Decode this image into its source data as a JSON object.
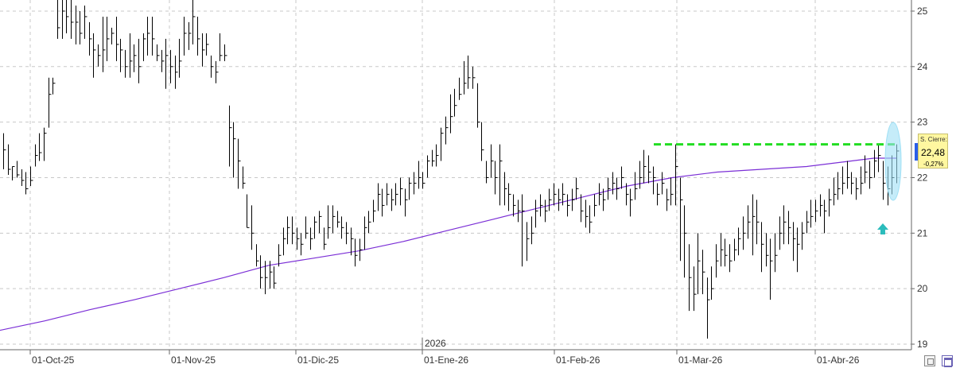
{
  "chart_data": {
    "type": "ohlc_bar",
    "x_tick_labels": [
      "01-Oct-25",
      "01-Nov-25",
      "01-Dic-25",
      "01-Ene-26",
      "01-Feb-26",
      "01-Mar-26",
      "01-Abr-26"
    ],
    "year_label": "2026",
    "y_tick_labels": [
      "19",
      "20",
      "21",
      "22",
      "23",
      "24",
      "25"
    ],
    "y_ticks": [
      19,
      20,
      21,
      22,
      23,
      24,
      25
    ],
    "ylim": [
      18.9,
      25.2
    ],
    "grid": true,
    "series": [
      {
        "kind": "ohlc",
        "color": "#000000",
        "values": [
          [
            22.8,
            22.5,
            22.15
          ],
          [
            22.6,
            22.15,
            22.05
          ],
          [
            22.2,
            22.2,
            21.95
          ],
          [
            22.3,
            22.05,
            22.0
          ],
          [
            22.15,
            21.95,
            21.85
          ],
          [
            22.1,
            21.8,
            21.7
          ],
          [
            22.2,
            21.95,
            21.85
          ],
          [
            22.6,
            22.4,
            22.2
          ],
          [
            22.8,
            22.45,
            22.3
          ],
          [
            22.9,
            22.8,
            22.3
          ],
          [
            23.8,
            23.5,
            22.9
          ],
          [
            23.8,
            23.7,
            23.5
          ],
          [
            25.3,
            24.7,
            24.5
          ],
          [
            25.2,
            25.0,
            24.5
          ],
          [
            25.2,
            24.9,
            24.6
          ],
          [
            25.2,
            24.8,
            24.5
          ],
          [
            25.1,
            24.8,
            24.4
          ],
          [
            25.0,
            24.6,
            24.4
          ],
          [
            25.1,
            24.9,
            24.5
          ],
          [
            24.8,
            24.5,
            24.2
          ],
          [
            24.6,
            24.3,
            23.8
          ],
          [
            24.4,
            24.2,
            24.0
          ],
          [
            24.9,
            24.3,
            23.9
          ],
          [
            24.9,
            24.5,
            24.1
          ],
          [
            24.7,
            24.6,
            24.4
          ],
          [
            24.9,
            24.4,
            24.1
          ],
          [
            24.5,
            24.3,
            23.9
          ],
          [
            24.3,
            24.0,
            23.8
          ],
          [
            24.6,
            24.1,
            23.8
          ],
          [
            24.4,
            24.2,
            23.9
          ],
          [
            24.5,
            24.0,
            23.7
          ],
          [
            24.6,
            24.5,
            24.1
          ],
          [
            24.9,
            24.6,
            24.2
          ],
          [
            24.9,
            24.5,
            24.2
          ],
          [
            24.4,
            24.2,
            24.1
          ],
          [
            24.3,
            24.1,
            23.9
          ],
          [
            24.5,
            24.2,
            23.6
          ],
          [
            24.3,
            24.0,
            23.7
          ],
          [
            24.2,
            23.9,
            23.6
          ],
          [
            24.5,
            24.1,
            23.8
          ],
          [
            24.9,
            24.6,
            24.2
          ],
          [
            24.8,
            24.6,
            24.3
          ],
          [
            25.2,
            24.9,
            24.4
          ],
          [
            24.9,
            24.5,
            24.2
          ],
          [
            24.6,
            24.3,
            24.0
          ],
          [
            24.6,
            24.4,
            24.2
          ],
          [
            24.2,
            24.0,
            23.8
          ],
          [
            24.1,
            23.9,
            23.7
          ],
          [
            24.6,
            24.2,
            24.1
          ],
          [
            24.4,
            24.2,
            24.1
          ],
          [
            23.3,
            22.9,
            22.2
          ],
          [
            23.0,
            22.7,
            22.0
          ],
          [
            22.7,
            22.3,
            21.8
          ],
          [
            22.2,
            21.9,
            21.8
          ],
          [
            21.7,
            21.1,
            21.1
          ],
          [
            21.5,
            21.0,
            20.7
          ],
          [
            20.8,
            20.5,
            20.4
          ],
          [
            20.6,
            20.2,
            20.0
          ],
          [
            20.5,
            20.2,
            19.9
          ],
          [
            20.5,
            20.3,
            20.0
          ],
          [
            20.4,
            20.1,
            20.0
          ],
          [
            20.8,
            20.6,
            20.4
          ],
          [
            21.1,
            20.9,
            20.6
          ],
          [
            21.3,
            21.1,
            20.8
          ],
          [
            21.3,
            21.0,
            20.8
          ],
          [
            21.1,
            20.9,
            20.7
          ],
          [
            21.0,
            20.8,
            20.6
          ],
          [
            21.3,
            21.0,
            20.9
          ],
          [
            21.1,
            20.9,
            20.7
          ],
          [
            21.3,
            21.2,
            20.9
          ],
          [
            21.4,
            21.3,
            21.0
          ],
          [
            21.1,
            20.8,
            20.7
          ],
          [
            21.5,
            21.1,
            20.9
          ],
          [
            21.5,
            21.3,
            21.0
          ],
          [
            21.4,
            21.2,
            21.1
          ],
          [
            21.3,
            21.1,
            20.9
          ],
          [
            21.2,
            21.0,
            20.8
          ],
          [
            21.1,
            20.9,
            20.6
          ],
          [
            20.9,
            20.6,
            20.4
          ],
          [
            20.9,
            20.7,
            20.5
          ],
          [
            21.3,
            21.1,
            20.7
          ],
          [
            21.4,
            21.2,
            21.0
          ],
          [
            21.6,
            21.4,
            21.2
          ],
          [
            21.9,
            21.7,
            21.4
          ],
          [
            21.8,
            21.5,
            21.3
          ],
          [
            21.9,
            21.7,
            21.5
          ],
          [
            21.8,
            21.6,
            21.4
          ],
          [
            21.9,
            21.7,
            21.5
          ],
          [
            22.0,
            21.8,
            21.5
          ],
          [
            21.8,
            21.6,
            21.3
          ],
          [
            22.0,
            21.9,
            21.6
          ],
          [
            22.1,
            21.9,
            21.7
          ],
          [
            22.3,
            22.0,
            21.8
          ],
          [
            22.1,
            21.9,
            21.8
          ],
          [
            22.4,
            22.3,
            22.0
          ],
          [
            22.5,
            22.3,
            22.2
          ],
          [
            22.6,
            22.4,
            22.2
          ],
          [
            22.9,
            22.8,
            22.3
          ],
          [
            23.1,
            22.9,
            22.6
          ],
          [
            23.5,
            23.1,
            22.8
          ],
          [
            23.6,
            23.3,
            23.1
          ],
          [
            23.8,
            23.5,
            23.4
          ],
          [
            24.1,
            23.7,
            23.5
          ],
          [
            24.2,
            23.8,
            23.6
          ],
          [
            24.0,
            23.8,
            23.6
          ],
          [
            23.7,
            23.0,
            22.9
          ],
          [
            23.0,
            22.5,
            22.3
          ],
          [
            22.3,
            22.0,
            21.9
          ],
          [
            22.6,
            22.3,
            22.0
          ],
          [
            22.3,
            22.0,
            21.7
          ],
          [
            22.6,
            22.3,
            21.5
          ],
          [
            22.1,
            21.8,
            21.5
          ],
          [
            21.9,
            21.7,
            21.4
          ],
          [
            21.7,
            21.5,
            21.3
          ],
          [
            21.6,
            21.4,
            21.2
          ],
          [
            21.7,
            21.4,
            20.4
          ],
          [
            21.2,
            20.9,
            20.5
          ],
          [
            21.3,
            21.0,
            20.8
          ],
          [
            21.6,
            21.4,
            21.1
          ],
          [
            21.7,
            21.5,
            21.3
          ],
          [
            21.6,
            21.4,
            21.2
          ],
          [
            21.8,
            21.6,
            21.4
          ],
          [
            21.9,
            21.7,
            21.5
          ],
          [
            21.8,
            21.6,
            21.4
          ],
          [
            21.9,
            21.7,
            21.5
          ],
          [
            21.7,
            21.5,
            21.3
          ],
          [
            21.8,
            21.6,
            21.4
          ],
          [
            22.0,
            21.8,
            21.6
          ],
          [
            21.7,
            21.4,
            21.2
          ],
          [
            21.6,
            21.3,
            21.1
          ],
          [
            21.5,
            21.2,
            21.0
          ],
          [
            21.7,
            21.5,
            21.3
          ],
          [
            21.9,
            21.7,
            21.5
          ],
          [
            21.8,
            21.6,
            21.4
          ],
          [
            22.0,
            21.8,
            21.6
          ],
          [
            22.1,
            21.9,
            21.7
          ],
          [
            22.0,
            21.8,
            21.6
          ],
          [
            22.2,
            22.0,
            21.8
          ],
          [
            21.9,
            21.7,
            21.5
          ],
          [
            21.8,
            21.6,
            21.3
          ],
          [
            22.1,
            21.8,
            21.6
          ],
          [
            22.3,
            22.0,
            21.8
          ],
          [
            22.5,
            22.2,
            21.9
          ],
          [
            22.4,
            22.1,
            21.9
          ],
          [
            22.2,
            22.0,
            21.7
          ],
          [
            21.9,
            21.7,
            21.5
          ],
          [
            22.1,
            21.9,
            21.7
          ],
          [
            21.8,
            21.6,
            21.4
          ],
          [
            22.0,
            21.7,
            21.5
          ],
          [
            22.6,
            22.2,
            21.5
          ],
          [
            22.0,
            21.6,
            20.5
          ],
          [
            21.5,
            21.0,
            20.2
          ],
          [
            20.8,
            20.2,
            19.6
          ],
          [
            20.4,
            19.9,
            19.6
          ],
          [
            21.0,
            20.5,
            19.9
          ],
          [
            20.7,
            20.3,
            19.9
          ],
          [
            20.2,
            19.8,
            19.1
          ],
          [
            20.4,
            20.0,
            19.8
          ],
          [
            20.8,
            20.5,
            20.2
          ],
          [
            21.0,
            20.7,
            20.4
          ],
          [
            20.9,
            20.6,
            20.4
          ],
          [
            20.8,
            20.5,
            20.3
          ],
          [
            20.9,
            20.7,
            20.5
          ],
          [
            21.1,
            20.9,
            20.6
          ],
          [
            21.3,
            21.0,
            20.7
          ],
          [
            21.5,
            21.2,
            20.9
          ],
          [
            21.7,
            21.3,
            20.6
          ],
          [
            21.6,
            21.2,
            20.8
          ],
          [
            21.2,
            20.8,
            20.3
          ],
          [
            21.0,
            20.6,
            20.4
          ],
          [
            20.9,
            20.5,
            19.8
          ],
          [
            21.0,
            20.6,
            20.3
          ],
          [
            21.3,
            21.0,
            20.7
          ],
          [
            21.5,
            21.2,
            20.8
          ],
          [
            21.4,
            21.1,
            20.8
          ],
          [
            21.2,
            20.9,
            20.5
          ],
          [
            21.1,
            20.8,
            20.3
          ],
          [
            21.2,
            21.0,
            20.7
          ],
          [
            21.4,
            21.2,
            21.0
          ],
          [
            21.6,
            21.3,
            21.1
          ],
          [
            21.6,
            21.4,
            21.2
          ],
          [
            21.7,
            21.5,
            21.3
          ],
          [
            21.6,
            21.4,
            21.0
          ],
          [
            21.8,
            21.6,
            21.3
          ],
          [
            22.0,
            21.7,
            21.5
          ],
          [
            22.1,
            21.8,
            21.6
          ],
          [
            22.2,
            21.9,
            21.7
          ],
          [
            22.3,
            22.0,
            21.8
          ],
          [
            22.1,
            21.9,
            21.7
          ],
          [
            22.0,
            21.8,
            21.6
          ],
          [
            22.2,
            21.9,
            21.7
          ],
          [
            22.4,
            22.1,
            21.9
          ],
          [
            22.3,
            22.0,
            21.8
          ],
          [
            22.5,
            22.3,
            22.0
          ],
          [
            22.6,
            22.4,
            22.1
          ],
          [
            22.3,
            21.9,
            21.6
          ],
          [
            22.2,
            21.8,
            21.5
          ],
          [
            22.4,
            22.0,
            21.7
          ],
          [
            22.6,
            22.48,
            21.9
          ]
        ]
      },
      {
        "kind": "moving_average",
        "color": "#7b2fd6",
        "x_fraction": [
          0.0,
          0.05,
          0.1,
          0.15,
          0.2,
          0.25,
          0.3,
          0.35,
          0.4,
          0.45,
          0.5,
          0.55,
          0.6,
          0.65,
          0.7,
          0.75,
          0.8,
          0.85,
          0.9,
          0.95,
          0.975,
          1.0
        ],
        "values": [
          19.25,
          19.42,
          19.62,
          19.8,
          20.0,
          20.2,
          20.42,
          20.55,
          20.68,
          20.85,
          21.05,
          21.25,
          21.45,
          21.65,
          21.85,
          22.0,
          22.1,
          22.15,
          22.2,
          22.3,
          22.35,
          22.35
        ]
      }
    ],
    "resistance_level": {
      "value": 22.6,
      "color": "#22dd22",
      "style": "dashed"
    },
    "highlight_ellipse_color": "#9fe0f5",
    "arrow_color": "#2bbcbc",
    "last_price": {
      "label": "S. Cierre:",
      "value": "22,48",
      "change": "-0,27%"
    }
  }
}
